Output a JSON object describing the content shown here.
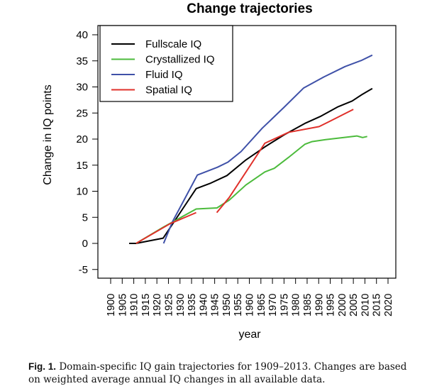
{
  "chart_data": {
    "type": "line",
    "title": "Change trajectories",
    "xlabel": "year",
    "ylabel": "Change in IQ points",
    "xlim": [
      1900,
      2020
    ],
    "ylim": [
      -5,
      40
    ],
    "xticks": [
      "1900",
      "1905",
      "1910",
      "1915",
      "1920",
      "1925",
      "1930",
      "1935",
      "1940",
      "1945",
      "1950",
      "1955",
      "1960",
      "1965",
      "1970",
      "1975",
      "1980",
      "1985",
      "1990",
      "1995",
      "2000",
      "2005",
      "2010",
      "2015",
      "2020"
    ],
    "yticks": [
      "-5",
      "0",
      "5",
      "10",
      "15",
      "20",
      "25",
      "30",
      "35",
      "40"
    ],
    "legend_position": "top-left",
    "grid": false,
    "series": [
      {
        "name": "Fullscale IQ",
        "color": "#000000",
        "segments": [
          [
            [
              1908,
              0
            ],
            [
              1911,
              0
            ],
            [
              1922.7,
              1.0
            ],
            [
              1937,
              10.5
            ],
            [
              1943,
              11.5
            ],
            [
              1950.3,
              13
            ],
            [
              1958.5,
              16
            ],
            [
              1966.7,
              18.5
            ],
            [
              1975,
              20.8
            ],
            [
              1984,
              23
            ],
            [
              1991,
              24.4
            ],
            [
              1998.4,
              26.2
            ],
            [
              2004.5,
              27.3
            ],
            [
              2008.6,
              28.5
            ],
            [
              2013.2,
              29.7
            ]
          ]
        ]
      },
      {
        "name": "Crystallized IQ",
        "color": "#4cbb3c",
        "segments": [
          [
            [
              1911,
              0
            ],
            [
              1922.7,
              3.1
            ],
            [
              1937,
              6.6
            ],
            [
              1946,
              6.8
            ],
            [
              1951.3,
              8.3
            ],
            [
              1958.5,
              11.2
            ],
            [
              1966.7,
              13.7
            ],
            [
              1970.8,
              14.4
            ],
            [
              1977,
              16.5
            ],
            [
              1984,
              19
            ],
            [
              1987,
              19.5
            ],
            [
              1993,
              19.9
            ],
            [
              2006.5,
              20.6
            ],
            [
              2009,
              20.3
            ],
            [
              2011,
              20.5
            ]
          ]
        ]
      },
      {
        "name": "Fluid IQ",
        "color": "#3f51a8",
        "segments": [
          [
            [
              1922.9,
              0
            ],
            [
              1926.8,
              4.2
            ],
            [
              1937.5,
              13.1
            ],
            [
              1946.2,
              14.6
            ],
            [
              1950.8,
              15.6
            ],
            [
              1956.4,
              17.6
            ],
            [
              1965.6,
              22.1
            ],
            [
              1974.8,
              26
            ],
            [
              1983.5,
              29.8
            ],
            [
              1992.2,
              31.9
            ],
            [
              2001.4,
              33.9
            ],
            [
              2008.6,
              35.1
            ],
            [
              2013.2,
              36.1
            ]
          ]
        ]
      },
      {
        "name": "Spatial IQ",
        "color": "#e0302a",
        "segments": [
          [
            [
              1911,
              0
            ],
            [
              1925.8,
              3.8
            ],
            [
              1937,
              5.9
            ]
          ],
          [
            [
              1945.9,
              5.9
            ],
            [
              1951.3,
              8.8
            ],
            [
              1966.7,
              19.2
            ],
            [
              1977,
              21.3
            ],
            [
              1990.2,
              22.4
            ],
            [
              1994.3,
              23.3
            ],
            [
              2005,
              25.7
            ]
          ]
        ]
      }
    ]
  },
  "caption": {
    "label": "Fig. 1.",
    "text": "Domain-specific IQ gain trajectories for 1909–2013. Changes are based on weighted average annual IQ changes in all available data."
  }
}
